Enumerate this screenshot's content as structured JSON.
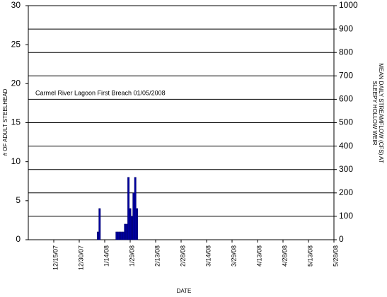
{
  "chart_data": {
    "type": "bar",
    "annotation": "Carmel River Lagoon First Breach 01/05/2008",
    "xlabel": "DATE",
    "ylabel": "# OF ADULT STEELHEAD",
    "y2label": [
      "MEAN DAILY STREAMFLOW (CFS) AT",
      "SLEEPY HOLLOW WEIR"
    ],
    "x": [
      "1/10/08",
      "1/11/08",
      "1/21/08",
      "1/22/08",
      "1/23/08",
      "1/24/08",
      "1/25/08",
      "1/26/08",
      "1/27/08",
      "1/28/08",
      "1/29/08",
      "1/30/08",
      "1/31/08",
      "2/1/08",
      "2/2/08"
    ],
    "values": [
      1,
      4,
      1,
      1,
      1,
      1,
      1,
      2,
      2,
      8,
      4,
      3,
      6,
      8,
      4
    ],
    "color": "#0000a0",
    "xlim": [
      "11/30/07",
      "5/28/08"
    ],
    "xticks": [
      "12/15/07",
      "12/30/07",
      "1/14/08",
      "1/29/08",
      "2/13/08",
      "2/28/08",
      "3/14/08",
      "3/29/08",
      "4/13/08",
      "4/28/08",
      "5/13/08",
      "5/28/08"
    ],
    "ylim": [
      0,
      30
    ],
    "yticks": [
      0,
      5,
      10,
      15,
      20,
      25,
      30
    ],
    "y2lim": [
      0,
      1000
    ],
    "y2ticks": [
      0,
      100,
      200,
      300,
      400,
      500,
      600,
      700,
      800,
      900,
      1000
    ],
    "grid": true
  }
}
